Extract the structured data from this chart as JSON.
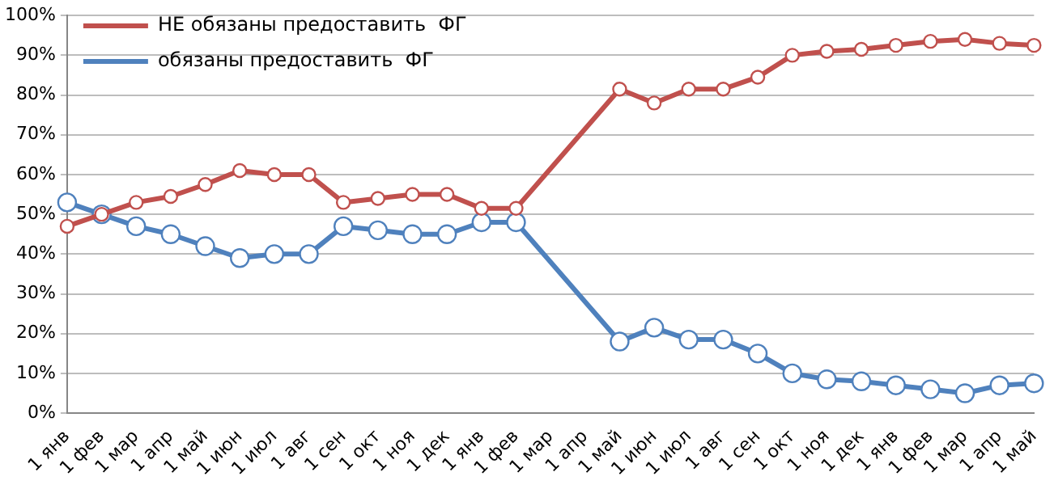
{
  "chart_data": {
    "type": "line",
    "categories": [
      "1 янв",
      "1 фев",
      "1 мар",
      "1 апр",
      "1 май",
      "1 июн",
      "1 июл",
      "1 авг",
      "1 сен",
      "1 окт",
      "1 ноя",
      "1 дек",
      "1 янв",
      "1 фев",
      "1 мар",
      "1 апр",
      "1 май",
      "1 июн",
      "1 июл",
      "1 авг",
      "1 сен",
      "1 окт",
      "1 ноя",
      "1 дек",
      "1 янв",
      "1 фев",
      "1 мар",
      "1 апр",
      "1 май"
    ],
    "series": [
      {
        "name": "НЕ обязаны предоставить  ФГ",
        "color": "#c0504d",
        "values": [
          47,
          50,
          53,
          54.5,
          57.5,
          61,
          60,
          60,
          53,
          54,
          55,
          55,
          51.5,
          51.5,
          null,
          null,
          81.5,
          78,
          81.5,
          81.5,
          84.5,
          90,
          91,
          91.5,
          92.5,
          93.5,
          94,
          93,
          92.5
        ]
      },
      {
        "name": "обязаны предоставить  ФГ",
        "color": "#4f81bd",
        "values": [
          53,
          50,
          47,
          45,
          42,
          39,
          40,
          40,
          47,
          46,
          45,
          45,
          48,
          48,
          null,
          null,
          18,
          21.5,
          18.5,
          18.5,
          15,
          10,
          8.5,
          8,
          7,
          6,
          5,
          7,
          7.5
        ]
      }
    ],
    "ylim": [
      0,
      100
    ],
    "yticks": [
      {
        "value": 0,
        "label": "0%"
      },
      {
        "value": 10,
        "label": "10%"
      },
      {
        "value": 20,
        "label": "20%"
      },
      {
        "value": 30,
        "label": "30%"
      },
      {
        "value": 40,
        "label": "40%"
      },
      {
        "value": 50,
        "label": "50%"
      },
      {
        "value": 60,
        "label": "60%"
      },
      {
        "value": 70,
        "label": "70%"
      },
      {
        "value": 80,
        "label": "80%"
      },
      {
        "value": 90,
        "label": "90%"
      },
      {
        "value": 100,
        "label": "100%"
      }
    ],
    "grid": "y",
    "legend": "top left",
    "marker": "circle",
    "line_style": "solid"
  }
}
